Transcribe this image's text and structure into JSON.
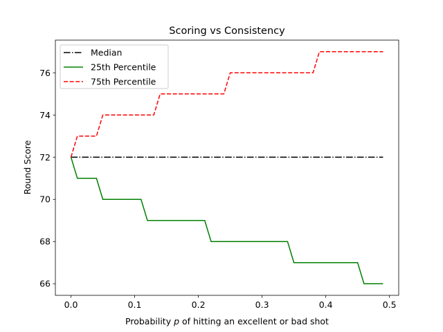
{
  "chart_data": {
    "type": "line",
    "title": "Scoring vs Consistency",
    "xlabel_parts": [
      "Probability ",
      "p",
      " of hitting an excellent or bad shot"
    ],
    "ylabel": "Round Score",
    "xlim": [
      -0.0245,
      0.5145
    ],
    "ylim": [
      65.45,
      77.55
    ],
    "xticks": [
      0.0,
      0.1,
      0.2,
      0.3,
      0.4,
      0.5
    ],
    "xtick_labels": [
      "0.0",
      "0.1",
      "0.2",
      "0.3",
      "0.4",
      "0.5"
    ],
    "yticks": [
      66,
      68,
      70,
      72,
      74,
      76
    ],
    "ytick_labels": [
      "66",
      "68",
      "70",
      "72",
      "74",
      "76"
    ],
    "grid": false,
    "legend_position": "upper-left",
    "x": [
      0.0,
      0.01,
      0.02,
      0.03,
      0.04,
      0.05,
      0.06,
      0.07,
      0.08,
      0.09,
      0.1,
      0.11,
      0.12,
      0.13,
      0.14,
      0.15,
      0.16,
      0.17,
      0.18,
      0.19,
      0.2,
      0.21,
      0.22,
      0.23,
      0.24,
      0.25,
      0.26,
      0.27,
      0.28,
      0.29,
      0.3,
      0.31,
      0.32,
      0.33,
      0.34,
      0.35,
      0.36,
      0.37,
      0.38,
      0.39,
      0.4,
      0.41,
      0.42,
      0.43,
      0.44,
      0.45,
      0.46,
      0.47,
      0.48,
      0.49
    ],
    "series": [
      {
        "name": "Median",
        "color": "#000000",
        "style": "dashdot",
        "values": [
          72,
          72,
          72,
          72,
          72,
          72,
          72,
          72,
          72,
          72,
          72,
          72,
          72,
          72,
          72,
          72,
          72,
          72,
          72,
          72,
          72,
          72,
          72,
          72,
          72,
          72,
          72,
          72,
          72,
          72,
          72,
          72,
          72,
          72,
          72,
          72,
          72,
          72,
          72,
          72,
          72,
          72,
          72,
          72,
          72,
          72,
          72,
          72,
          72,
          72
        ]
      },
      {
        "name": "25th Percentile",
        "color": "#008000",
        "style": "solid",
        "values": [
          72,
          71,
          71,
          71,
          71,
          70,
          70,
          70,
          70,
          70,
          70,
          70,
          69,
          69,
          69,
          69,
          69,
          69,
          69,
          69,
          69,
          69,
          68,
          68,
          68,
          68,
          68,
          68,
          68,
          68,
          68,
          68,
          68,
          68,
          68,
          67,
          67,
          67,
          67,
          67,
          67,
          67,
          67,
          67,
          67,
          67,
          66,
          66,
          66,
          66
        ]
      },
      {
        "name": "75th Percentile",
        "color": "#ff0000",
        "style": "dashed",
        "values": [
          72,
          73,
          73,
          73,
          73,
          74,
          74,
          74,
          74,
          74,
          74,
          74,
          74,
          74,
          75,
          75,
          75,
          75,
          75,
          75,
          75,
          75,
          75,
          75,
          75,
          76,
          76,
          76,
          76,
          76,
          76,
          76,
          76,
          76,
          76,
          76,
          76,
          76,
          76,
          77,
          77,
          77,
          77,
          77,
          77,
          77,
          77,
          77,
          77,
          77
        ]
      }
    ]
  }
}
